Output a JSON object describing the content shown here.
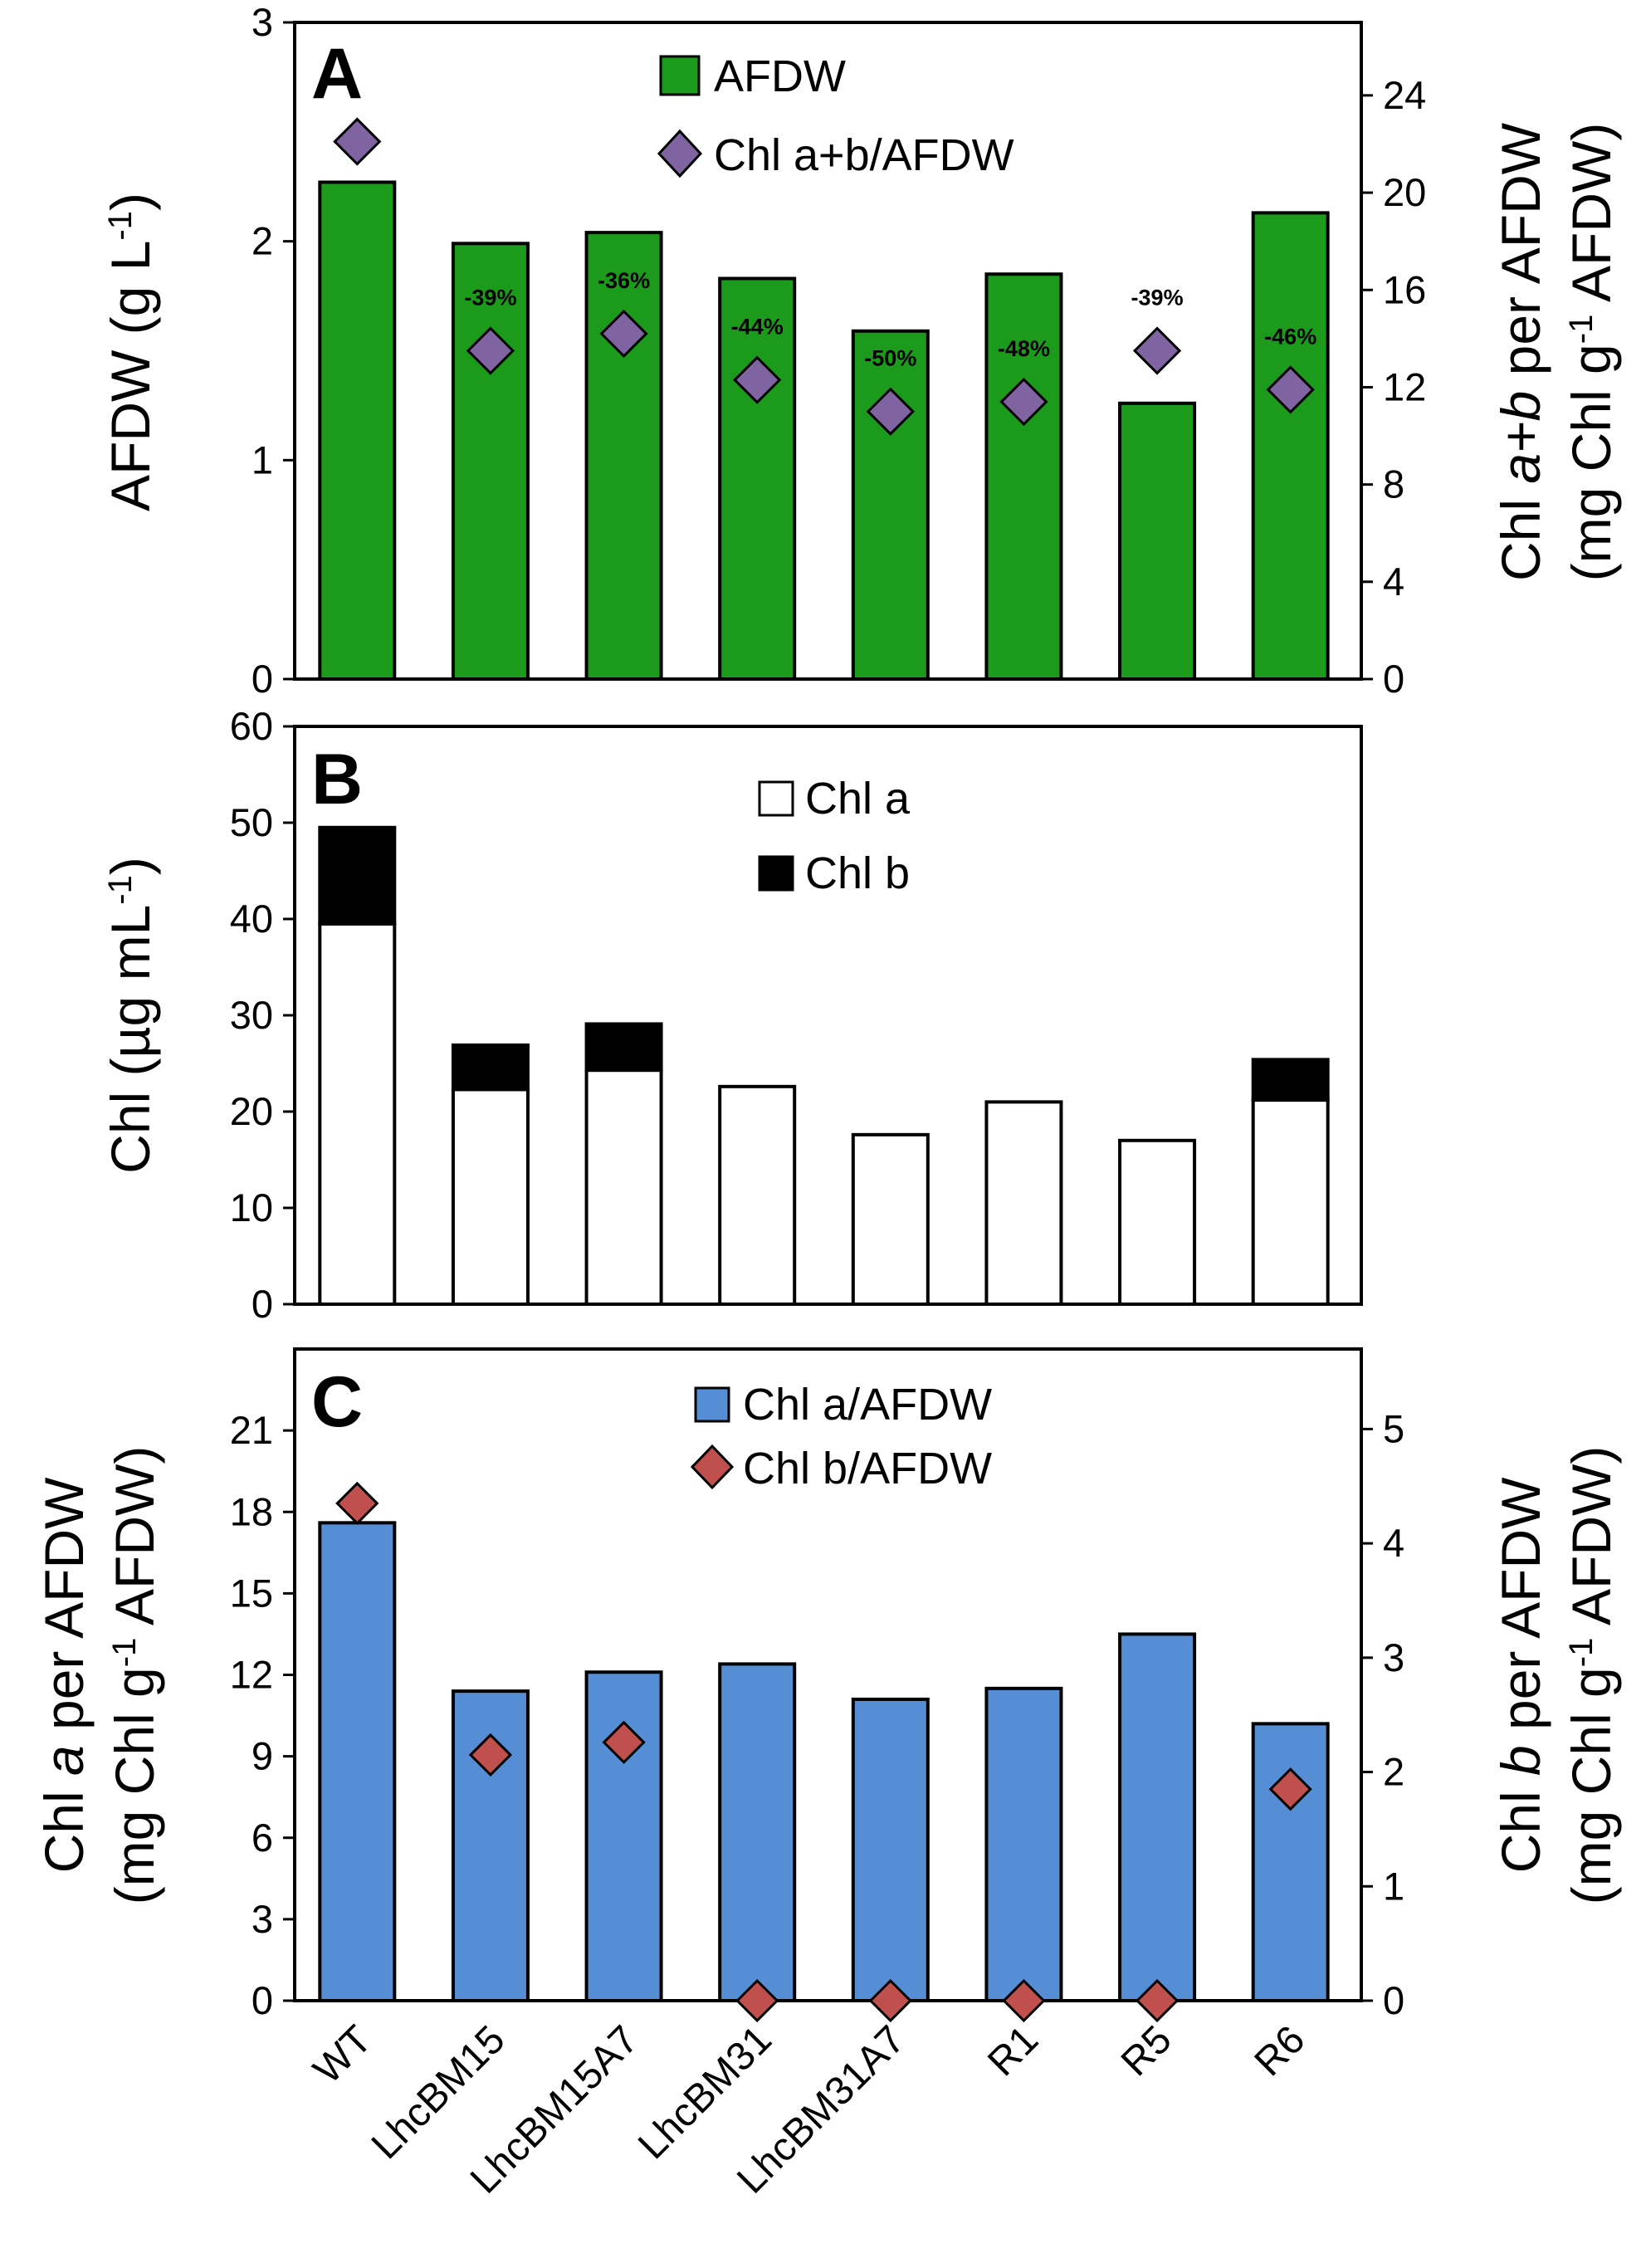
{
  "chart_data": [
    {
      "panel": "A",
      "type": "bar",
      "categories": [
        "WT",
        "LhcBM15",
        "LhcBM15A7",
        "LhcBM31",
        "LhcBM31A7",
        "R1",
        "R5",
        "R6"
      ],
      "series": [
        {
          "name": "AFDW",
          "kind": "bar",
          "axis": "left",
          "color": "#1b9a1b",
          "values": [
            2.27,
            1.99,
            2.04,
            1.83,
            1.59,
            1.85,
            1.26,
            2.13
          ]
        },
        {
          "name": "Chl a+b/AFDW",
          "kind": "marker",
          "axis": "right",
          "color": "#8064a2",
          "values": [
            22.1,
            13.5,
            14.2,
            12.3,
            11.0,
            11.4,
            13.5,
            11.9
          ]
        }
      ],
      "annotations": [
        "",
        "-39%",
        "-36%",
        "-44%",
        "-50%",
        "-48%",
        "-39%",
        "-46%"
      ],
      "ylabel_left": "AFDW (g L",
      "ylabel_left_sup": "-1",
      "ylabel_left_end": ")",
      "ylabel_right_1a": "Chl ",
      "ylabel_right_1b": "a+b",
      "ylabel_right_1c": " per AFDW",
      "ylabel_right_2a": "(mg Chl g",
      "ylabel_right_2sup": "-1",
      "ylabel_right_2b": " AFDW)",
      "ylim_left": [
        0,
        3
      ],
      "yticks_left": [
        "0",
        "1",
        "2",
        "3"
      ],
      "ylim_right": [
        0,
        27
      ],
      "yticks_right": [
        "0",
        "4",
        "8",
        "12",
        "16",
        "20",
        "24"
      ],
      "legend": [
        "AFDW",
        "Chl a+b/AFDW"
      ]
    },
    {
      "panel": "B",
      "type": "bar",
      "stacked": true,
      "categories": [
        "WT",
        "LhcBM15",
        "LhcBM15A7",
        "LhcBM31",
        "LhcBM31A7",
        "R1",
        "R5",
        "R6"
      ],
      "series": [
        {
          "name": "Chl a",
          "color": "#ffffff",
          "values": [
            39.5,
            22.3,
            24.3,
            22.6,
            17.6,
            21.0,
            17.0,
            21.2
          ]
        },
        {
          "name": "Chl b",
          "color": "#000000",
          "values": [
            10.0,
            4.6,
            4.8,
            0,
            0,
            0,
            0,
            4.2
          ]
        }
      ],
      "ylabel_a": "Chl (µg mL",
      "ylabel_sup": "-1",
      "ylabel_b": ")",
      "ylim": [
        0,
        60
      ],
      "yticks": [
        "0",
        "10",
        "20",
        "30",
        "40",
        "50",
        "60"
      ],
      "legend": [
        "Chl a",
        "Chl b"
      ]
    },
    {
      "panel": "C",
      "type": "bar",
      "categories": [
        "WT",
        "LhcBM15",
        "LhcBM15A7",
        "LhcBM31",
        "LhcBM31A7",
        "R1",
        "R5",
        "R6"
      ],
      "series": [
        {
          "name": "Chl a/AFDW",
          "kind": "bar",
          "axis": "left",
          "color": "#558ed5",
          "values": [
            17.6,
            11.4,
            12.1,
            12.4,
            11.1,
            11.5,
            13.5,
            10.2
          ]
        },
        {
          "name": "Chl b/AFDW",
          "kind": "marker",
          "axis": "right",
          "color": "#c0504d",
          "values": [
            4.35,
            2.15,
            2.26,
            0,
            0,
            0,
            0,
            1.85
          ]
        }
      ],
      "ylabel_left_1a": "Chl ",
      "ylabel_left_1b": "a",
      "ylabel_left_1c": " per AFDW",
      "ylabel_left_2a": "(mg Chl g",
      "ylabel_left_2sup": "-1",
      "ylabel_left_2b": " AFDW)",
      "ylabel_right_1a": "Chl ",
      "ylabel_right_1b": "b",
      "ylabel_right_1c": " per AFDW",
      "ylabel_right_2a": "(mg Chl g",
      "ylabel_right_2sup": "-1",
      "ylabel_right_2b": " AFDW)",
      "ylim_left": [
        0,
        24
      ],
      "yticks_left": [
        "0",
        "3",
        "6",
        "9",
        "12",
        "15",
        "18",
        "21"
      ],
      "ylim_right": [
        0,
        5.7
      ],
      "yticks_right": [
        "0",
        "1",
        "2",
        "3",
        "4",
        "5"
      ],
      "legend": [
        "Chl a/AFDW",
        "Chl b/AFDW"
      ]
    }
  ]
}
